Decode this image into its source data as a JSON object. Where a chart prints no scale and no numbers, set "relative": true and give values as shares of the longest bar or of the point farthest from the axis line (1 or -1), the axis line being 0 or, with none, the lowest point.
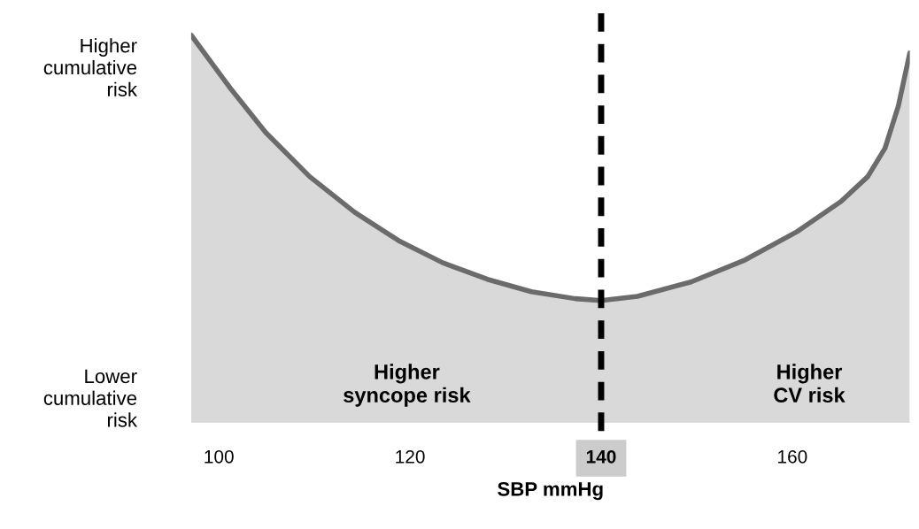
{
  "chart_data": {
    "type": "area",
    "relative": true,
    "xlabel": "SBP mmHg",
    "x": [
      97.1,
      101.2,
      104.9,
      109.5,
      114.2,
      118.8,
      123.4,
      128.1,
      132.7,
      137.3,
      140,
      143.8,
      149.4,
      154.9,
      160.5,
      165.1,
      167.9,
      169.7,
      171.1,
      172.3
    ],
    "series": [
      {
        "color": "#6b6b6b",
        "values": [
          1.0,
          0.863,
          0.749,
          0.635,
          0.543,
          0.47,
          0.413,
          0.37,
          0.338,
          0.32,
          0.315,
          0.326,
          0.363,
          0.418,
          0.493,
          0.571,
          0.635,
          0.708,
          0.817,
          0.954
        ]
      }
    ],
    "xlim": [
      97.1,
      172.3
    ],
    "xticks": [
      100,
      120,
      140,
      160
    ],
    "tick_labels": "x",
    "grid": false,
    "legend": false,
    "ref_lines": [
      {
        "axis": "x",
        "value": 140,
        "color": "#000000",
        "line_style": "dashed"
      }
    ],
    "annotations": [
      "Higher\ncumulative\nrisk",
      "Lower\ncumulative\nrisk",
      "Higher\nsyncope risk",
      "Higher\nCV risk"
    ]
  }
}
